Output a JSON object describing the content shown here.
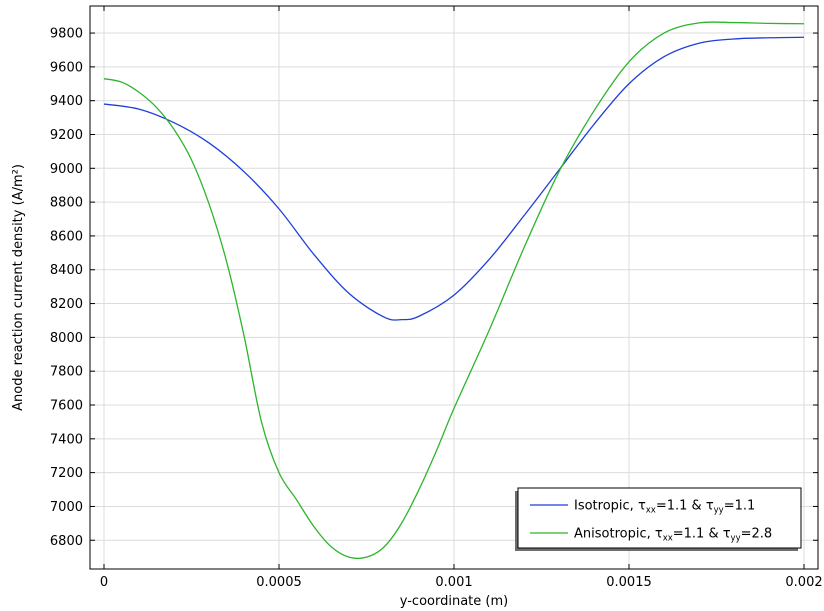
{
  "chart_data": {
    "type": "line",
    "xlabel": "y-coordinate (m)",
    "ylabel": "Anode reaction current density (A/m²)",
    "xlim": [
      -4e-05,
      0.00204
    ],
    "ylim": [
      6630,
      9960
    ],
    "xticks": [
      "0",
      "0.0005",
      "0.001",
      "0.0015",
      "0.002"
    ],
    "xtick_values": [
      0,
      0.0005,
      0.001,
      0.0015,
      0.002
    ],
    "yticks": [
      "6800",
      "7000",
      "7200",
      "7400",
      "7600",
      "7800",
      "8000",
      "8200",
      "8400",
      "8600",
      "8800",
      "9000",
      "9200",
      "9400",
      "9600",
      "9800"
    ],
    "ytick_values": [
      6800,
      7000,
      7200,
      7400,
      7600,
      7800,
      8000,
      8200,
      8400,
      8600,
      8800,
      9000,
      9200,
      9400,
      9600,
      9800
    ],
    "grid": true,
    "legend_position": "bottom-right",
    "series": [
      {
        "name": "Isotropic, τxx=1.1 & τyy=1.1",
        "legend_parts": {
          "base": "Isotropic, ",
          "t1": "τ",
          "s1": "xx",
          "v1": "=1.1 & ",
          "t2": "τ",
          "s2": "yy",
          "v2": "=1.1"
        },
        "color": "#1f3fdb",
        "x": [
          0,
          0.0001,
          0.0002,
          0.0003,
          0.0004,
          0.0005,
          0.0006,
          0.0007,
          0.0008,
          0.00085,
          0.0009,
          0.001,
          0.0011,
          0.0012,
          0.0013,
          0.0014,
          0.0015,
          0.0016,
          0.0017,
          0.0018,
          0.0019,
          0.002
        ],
        "y": [
          9380,
          9350,
          9270,
          9150,
          8980,
          8760,
          8490,
          8260,
          8120,
          8105,
          8125,
          8250,
          8460,
          8720,
          8990,
          9260,
          9500,
          9660,
          9740,
          9765,
          9772,
          9775
        ]
      },
      {
        "name": "Anisotropic, τxx=1.1 & τyy=2.8",
        "legend_parts": {
          "base": "Anisotropic, ",
          "t1": "τ",
          "s1": "xx",
          "v1": "=1.1 & ",
          "t2": "τ",
          "s2": "yy",
          "v2": "=2.8"
        },
        "color": "#2db52d",
        "x": [
          0,
          5e-05,
          0.0001,
          0.00015,
          0.0002,
          0.00025,
          0.0003,
          0.00035,
          0.0004,
          0.00045,
          0.0005,
          0.00055,
          0.0006,
          0.00065,
          0.0007,
          0.00075,
          0.0008,
          0.00085,
          0.0009,
          0.00095,
          0.001,
          0.0011,
          0.0012,
          0.0013,
          0.0014,
          0.0015,
          0.0016,
          0.0017,
          0.0018,
          0.0019,
          0.002
        ],
        "y": [
          9530,
          9510,
          9450,
          9360,
          9230,
          9050,
          8790,
          8450,
          8010,
          7500,
          7200,
          7040,
          6880,
          6760,
          6700,
          6700,
          6760,
          6900,
          7100,
          7330,
          7580,
          8040,
          8530,
          8980,
          9340,
          9630,
          9800,
          9860,
          9862,
          9857,
          9855
        ]
      }
    ]
  }
}
